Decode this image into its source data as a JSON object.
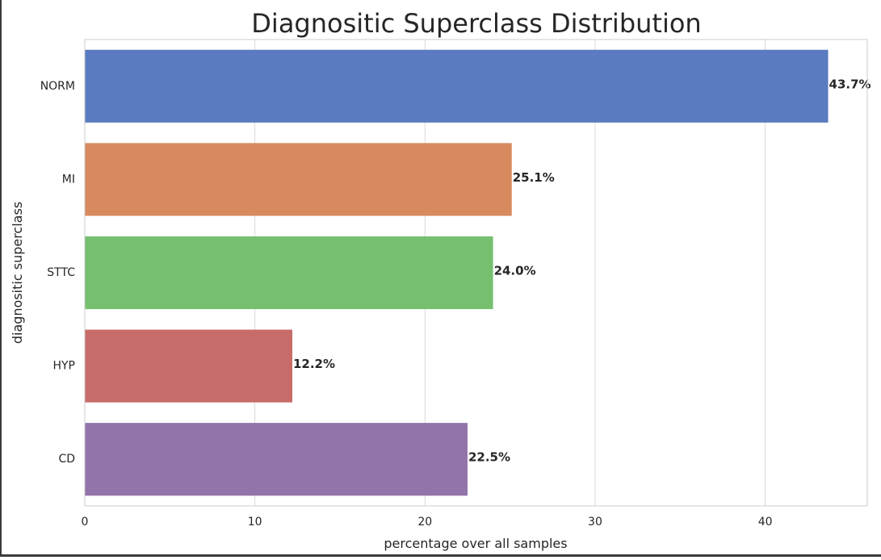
{
  "chart_data": {
    "type": "bar",
    "orientation": "horizontal",
    "title": "Diagnositic Superclass Distribution",
    "xlabel": "percentage over all samples",
    "ylabel": "diagnositic superclass",
    "xlim": [
      0,
      46
    ],
    "x_ticks": [
      0,
      10,
      20,
      30,
      40
    ],
    "grid": "vertical",
    "categories": [
      "NORM",
      "MI",
      "STTC",
      "HYP",
      "CD"
    ],
    "values": [
      43.7,
      25.1,
      24.0,
      12.2,
      22.5
    ],
    "data_labels": [
      "43.7%",
      "25.1%",
      "24.0%",
      "12.2%",
      "22.5%"
    ],
    "colors": [
      "#5a7bbf",
      "#d8895e",
      "#75bf6f",
      "#c76c69",
      "#9273aa"
    ]
  }
}
